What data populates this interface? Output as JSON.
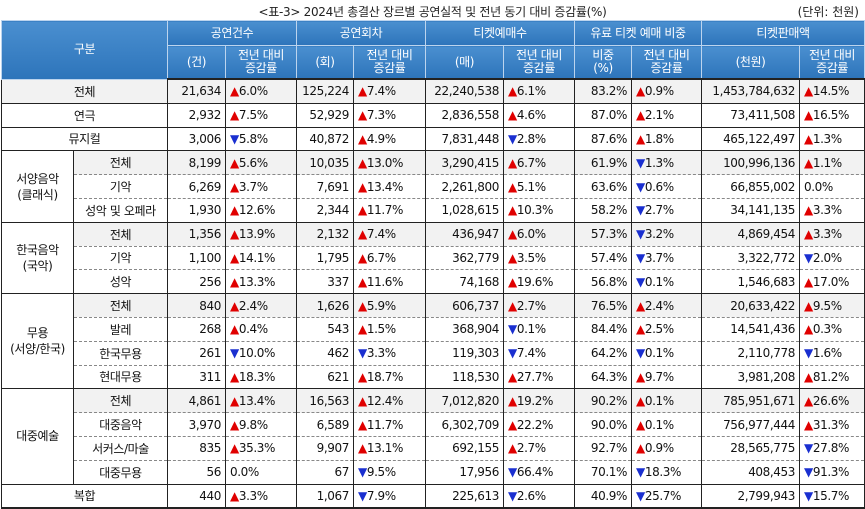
{
  "title": "<표-3> 2024년 총결산 장르별 공연실적 및 전년 동기 대비 증감률(%)",
  "unit": "(단위: 천원)",
  "colors": {
    "header_bg": "#2d74ba",
    "increase": "#e00000",
    "decrease": "#1a2fd0",
    "total_row_bg": "#f2f2f2"
  },
  "header": {
    "category": "구분",
    "groups": [
      "공연건수",
      "공연회차",
      "티켓예매수",
      "유료 티켓 예매 비중",
      "티켓판매액"
    ],
    "subs": [
      "(건)",
      "전년 대비 증감률",
      "(회)",
      "전년 대비 증감률",
      "(매)",
      "전년 대비 증감률",
      "비중 (%)",
      "전년 대비 증감률",
      "(천원)",
      "전년 대비 증감률"
    ]
  },
  "rows": [
    {
      "group": "전체",
      "sub": "",
      "gray": true,
      "values": [
        "21,634",
        "▲6.0%",
        "125,224",
        "▲7.4%",
        "22,240,538",
        "▲6.1%",
        "83.2%",
        "▲0.9%",
        "1,453,784,632",
        "▲14.5%"
      ]
    },
    {
      "group": "연극",
      "sub": "",
      "values": [
        "2,932",
        "▲7.5%",
        "52,929",
        "▲7.3%",
        "2,836,558",
        "▲4.6%",
        "87.0%",
        "▲2.1%",
        "73,411,508",
        "▲16.5%"
      ]
    },
    {
      "group": "뮤지컬",
      "sub": "",
      "values": [
        "3,006",
        "▼5.8%",
        "40,872",
        "▲4.9%",
        "7,831,448",
        "▼2.8%",
        "87.6%",
        "▲1.8%",
        "465,122,497",
        "▲1.3%"
      ]
    },
    {
      "group": "서양음악 (클래식)",
      "span": 3,
      "sub": "전체",
      "gray": true,
      "values": [
        "8,199",
        "▲5.6%",
        "10,035",
        "▲13.0%",
        "3,290,415",
        "▲6.7%",
        "61.9%",
        "▼1.3%",
        "100,996,136",
        "▲1.1%"
      ]
    },
    {
      "sub": "기악",
      "values": [
        "6,269",
        "▲3.7%",
        "7,691",
        "▲13.4%",
        "2,261,800",
        "▲5.1%",
        "63.6%",
        "▼0.6%",
        "66,855,002",
        "0.0%"
      ]
    },
    {
      "sub": "성악 및 오페라",
      "values": [
        "1,930",
        "▲12.6%",
        "2,344",
        "▲11.7%",
        "1,028,615",
        "▲10.3%",
        "58.2%",
        "▼2.7%",
        "34,141,135",
        "▲3.3%"
      ]
    },
    {
      "group": "한국음악 (국악)",
      "span": 3,
      "sub": "전체",
      "gray": true,
      "values": [
        "1,356",
        "▲13.9%",
        "2,132",
        "▲7.4%",
        "436,947",
        "▲6.0%",
        "57.3%",
        "▼3.2%",
        "4,869,454",
        "▲3.3%"
      ]
    },
    {
      "sub": "기악",
      "values": [
        "1,100",
        "▲14.1%",
        "1,795",
        "▲6.7%",
        "362,779",
        "▲3.5%",
        "57.4%",
        "▼3.7%",
        "3,322,772",
        "▼2.0%"
      ]
    },
    {
      "sub": "성악",
      "values": [
        "256",
        "▲13.3%",
        "337",
        "▲11.6%",
        "74,168",
        "▲19.6%",
        "56.8%",
        "▼0.1%",
        "1,546,683",
        "▲17.0%"
      ]
    },
    {
      "group": "무용 (서양/한국)",
      "span": 4,
      "sub": "전체",
      "gray": true,
      "values": [
        "840",
        "▲2.4%",
        "1,626",
        "▲5.9%",
        "606,737",
        "▲2.7%",
        "76.5%",
        "▲2.4%",
        "20,633,422",
        "▲9.5%"
      ]
    },
    {
      "sub": "발레",
      "values": [
        "268",
        "▲0.4%",
        "543",
        "▲1.5%",
        "368,904",
        "▼0.1%",
        "84.4%",
        "▲2.5%",
        "14,541,436",
        "▲0.3%"
      ]
    },
    {
      "sub": "한국무용",
      "values": [
        "261",
        "▼10.0%",
        "462",
        "▼3.3%",
        "119,303",
        "▼7.4%",
        "64.2%",
        "▼0.1%",
        "2,110,778",
        "▼1.6%"
      ]
    },
    {
      "sub": "현대무용",
      "values": [
        "311",
        "▲18.3%",
        "621",
        "▲18.7%",
        "118,530",
        "▲27.7%",
        "64.3%",
        "▲9.7%",
        "3,981,208",
        "▲81.2%"
      ]
    },
    {
      "group": "대중예술",
      "span": 4,
      "sub": "전체",
      "gray": true,
      "values": [
        "4,861",
        "▲13.4%",
        "16,563",
        "▲12.4%",
        "7,012,820",
        "▲19.2%",
        "90.2%",
        "▲0.1%",
        "785,951,671",
        "▲26.6%"
      ]
    },
    {
      "sub": "대중음악",
      "values": [
        "3,970",
        "▲9.8%",
        "6,589",
        "▲11.7%",
        "6,302,709",
        "▲22.2%",
        "90.0%",
        "▲0.1%",
        "756,977,444",
        "▲31.3%"
      ]
    },
    {
      "sub": "서커스/마술",
      "values": [
        "835",
        "▲35.3%",
        "9,907",
        "▲13.1%",
        "692,155",
        "▲2.7%",
        "92.7%",
        "▲0.9%",
        "28,565,775",
        "▼27.8%"
      ]
    },
    {
      "sub": "대중무용",
      "values": [
        "56",
        "0.0%",
        "67",
        "▼9.5%",
        "17,956",
        "▼66.4%",
        "70.1%",
        "▼18.3%",
        "408,453",
        "▼91.3%"
      ]
    },
    {
      "group": "복합",
      "sub": "",
      "values": [
        "440",
        "▲3.3%",
        "1,067",
        "▼7.9%",
        "225,613",
        "▼2.6%",
        "40.9%",
        "▼25.7%",
        "2,799,943",
        "▼15.7%"
      ]
    }
  ]
}
